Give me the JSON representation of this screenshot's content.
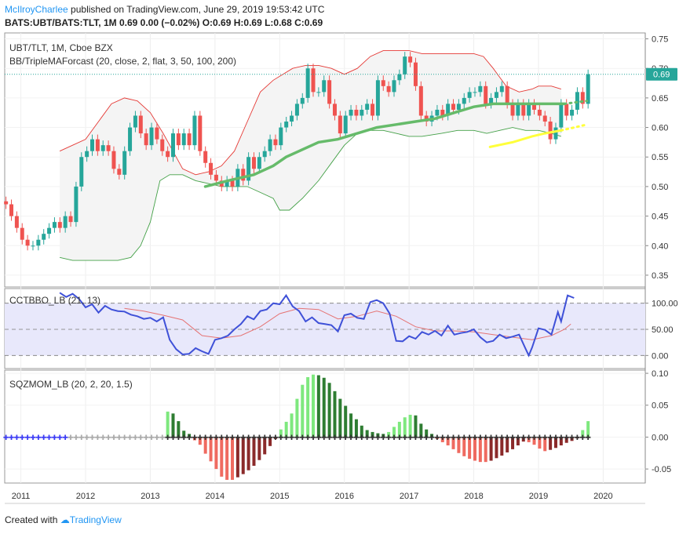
{
  "header": {
    "author": "McIlroyCharlee",
    "published_text": "published on TradingView.com, June 29, 2019 19:53:42 UTC",
    "quote_line": "BATS:UBT/BATS:TLT, 1M 0.69 0.00 (−0.02%) O:0.69 H:0.69 L:0.68 C:0.69"
  },
  "footer": {
    "created_with": "Created with",
    "brand": "TradingView"
  },
  "colors": {
    "up": "#26a69a",
    "down": "#ef5350",
    "bb_upper": "#e53935",
    "bb_lower": "#43a047",
    "ma_green": "#66bb6a",
    "ma_yellow": "#ffff3b",
    "cci": "#3f51d8",
    "cci_signal": "#e57373",
    "band_fill": "#e8e8fb",
    "sqz_up_strong": "#7ee87e",
    "sqz_up_weak": "#2e7d32",
    "sqz_down_strong": "#ef6a60",
    "sqz_down_weak": "#8b2a2a",
    "last_price": "#26a69a"
  },
  "chart_data": [
    {
      "type": "candlestick",
      "title": "UBT/TLT, 1M, Cboe BZX",
      "indicator_label": "BB/TripleMAForcast (20, close, 2, flat, 3, 50, 100, 200)",
      "last_price_label": "0.69",
      "ylim": [
        0.33,
        0.76
      ],
      "y_ticks": [
        "0.75",
        "0.70",
        "0.65",
        "0.60",
        "0.55",
        "0.50",
        "0.45",
        "0.40",
        "0.35"
      ],
      "x_ticks": [
        "2011",
        "2012",
        "2013",
        "2014",
        "2015",
        "2016",
        "2017",
        "2018",
        "2019",
        "2020"
      ],
      "x_start": 2010.75,
      "x_end": 2020.65,
      "closes": [
        0.47,
        0.45,
        0.43,
        0.41,
        0.4,
        0.4,
        0.41,
        0.42,
        0.43,
        0.44,
        0.43,
        0.45,
        0.44,
        0.5,
        0.55,
        0.56,
        0.58,
        0.56,
        0.57,
        0.56,
        0.53,
        0.52,
        0.56,
        0.6,
        0.62,
        0.59,
        0.57,
        0.6,
        0.58,
        0.56,
        0.55,
        0.59,
        0.57,
        0.59,
        0.57,
        0.62,
        0.56,
        0.54,
        0.52,
        0.51,
        0.5,
        0.51,
        0.5,
        0.53,
        0.51,
        0.55,
        0.53,
        0.55,
        0.56,
        0.58,
        0.57,
        0.6,
        0.61,
        0.62,
        0.64,
        0.65,
        0.7,
        0.66,
        0.66,
        0.68,
        0.64,
        0.62,
        0.59,
        0.62,
        0.63,
        0.62,
        0.63,
        0.64,
        0.62,
        0.68,
        0.67,
        0.66,
        0.68,
        0.69,
        0.72,
        0.71,
        0.67,
        0.62,
        0.61,
        0.62,
        0.63,
        0.62,
        0.64,
        0.63,
        0.64,
        0.65,
        0.66,
        0.66,
        0.67,
        0.64,
        0.65,
        0.66,
        0.67,
        0.64,
        0.62,
        0.64,
        0.62,
        0.64,
        0.63,
        0.62,
        0.61,
        0.58,
        0.6,
        0.64,
        0.62,
        0.63,
        0.66,
        0.64,
        0.69
      ],
      "bb_upper": [
        [
          2011.6,
          0.56
        ],
        [
          2011.8,
          0.57
        ],
        [
          2012.0,
          0.58
        ],
        [
          2012.2,
          0.61
        ],
        [
          2012.4,
          0.64
        ],
        [
          2012.6,
          0.65
        ],
        [
          2012.8,
          0.645
        ],
        [
          2013.0,
          0.625
        ],
        [
          2013.2,
          0.59
        ],
        [
          2013.35,
          0.56
        ],
        [
          2013.5,
          0.53
        ],
        [
          2013.7,
          0.52
        ],
        [
          2013.9,
          0.525
        ],
        [
          2014.1,
          0.535
        ],
        [
          2014.3,
          0.56
        ],
        [
          2014.5,
          0.61
        ],
        [
          2014.7,
          0.66
        ],
        [
          2014.9,
          0.68
        ],
        [
          2015.05,
          0.69
        ],
        [
          2015.2,
          0.7
        ],
        [
          2015.4,
          0.705
        ],
        [
          2015.6,
          0.705
        ],
        [
          2015.8,
          0.7
        ],
        [
          2016.0,
          0.69
        ],
        [
          2016.2,
          0.7
        ],
        [
          2016.4,
          0.72
        ],
        [
          2016.6,
          0.73
        ],
        [
          2016.8,
          0.73
        ],
        [
          2017.0,
          0.73
        ],
        [
          2017.2,
          0.725
        ],
        [
          2017.5,
          0.725
        ],
        [
          2017.8,
          0.725
        ],
        [
          2018.0,
          0.725
        ],
        [
          2018.15,
          0.72
        ],
        [
          2018.3,
          0.7
        ],
        [
          2018.5,
          0.67
        ],
        [
          2018.7,
          0.66
        ],
        [
          2018.9,
          0.665
        ],
        [
          2019.0,
          0.67
        ],
        [
          2019.2,
          0.67
        ],
        [
          2019.35,
          0.665
        ]
      ],
      "bb_lower": [
        [
          2011.6,
          0.38
        ],
        [
          2011.8,
          0.375
        ],
        [
          2012.0,
          0.375
        ],
        [
          2012.3,
          0.375
        ],
        [
          2012.5,
          0.375
        ],
        [
          2012.7,
          0.38
        ],
        [
          2012.85,
          0.4
        ],
        [
          2013.0,
          0.44
        ],
        [
          2013.15,
          0.51
        ],
        [
          2013.3,
          0.52
        ],
        [
          2013.5,
          0.52
        ],
        [
          2013.7,
          0.51
        ],
        [
          2013.9,
          0.505
        ],
        [
          2014.1,
          0.5
        ],
        [
          2014.3,
          0.5
        ],
        [
          2014.5,
          0.5
        ],
        [
          2014.7,
          0.49
        ],
        [
          2014.9,
          0.48
        ],
        [
          2015.0,
          0.46
        ],
        [
          2015.15,
          0.46
        ],
        [
          2015.35,
          0.48
        ],
        [
          2015.6,
          0.51
        ],
        [
          2015.8,
          0.54
        ],
        [
          2016.0,
          0.57
        ],
        [
          2016.2,
          0.59
        ],
        [
          2016.4,
          0.595
        ],
        [
          2016.6,
          0.595
        ],
        [
          2016.8,
          0.59
        ],
        [
          2017.0,
          0.585
        ],
        [
          2017.2,
          0.585
        ],
        [
          2017.5,
          0.59
        ],
        [
          2017.75,
          0.595
        ],
        [
          2018.0,
          0.595
        ],
        [
          2018.2,
          0.59
        ],
        [
          2018.4,
          0.595
        ],
        [
          2018.6,
          0.6
        ],
        [
          2018.8,
          0.595
        ],
        [
          2019.0,
          0.595
        ],
        [
          2019.2,
          0.59
        ],
        [
          2019.35,
          0.585
        ]
      ],
      "ma_green": [
        [
          2013.85,
          0.5
        ],
        [
          2014.2,
          0.51
        ],
        [
          2014.6,
          0.52
        ],
        [
          2014.9,
          0.535
        ],
        [
          2015.1,
          0.55
        ],
        [
          2015.3,
          0.56
        ],
        [
          2015.6,
          0.575
        ],
        [
          2015.9,
          0.58
        ],
        [
          2016.2,
          0.59
        ],
        [
          2016.5,
          0.6
        ],
        [
          2016.8,
          0.605
        ],
        [
          2017.1,
          0.61
        ],
        [
          2017.4,
          0.615
        ],
        [
          2017.7,
          0.625
        ],
        [
          2018.0,
          0.635
        ],
        [
          2018.3,
          0.64
        ],
        [
          2018.6,
          0.64
        ],
        [
          2018.9,
          0.64
        ],
        [
          2019.2,
          0.64
        ],
        [
          2019.4,
          0.64
        ]
      ],
      "ma_green_forecast": [
        [
          2019.4,
          0.64
        ],
        [
          2019.6,
          0.643
        ],
        [
          2019.75,
          0.645
        ]
      ],
      "ma_yellow": [
        [
          2018.25,
          0.567
        ],
        [
          2018.6,
          0.575
        ],
        [
          2018.9,
          0.585
        ],
        [
          2019.1,
          0.59
        ],
        [
          2019.35,
          0.595
        ]
      ],
      "ma_yellow_forecast": [
        [
          2019.35,
          0.595
        ],
        [
          2019.55,
          0.6
        ],
        [
          2019.75,
          0.605
        ]
      ]
    },
    {
      "type": "line",
      "title": "CCTBBO_LB (21, 13)",
      "ylim": [
        -25,
        128
      ],
      "y_ticks": [
        "100.00",
        "50.00",
        "0.00"
      ],
      "band": [
        0,
        100
      ],
      "cci": [
        [
          2011.6,
          120
        ],
        [
          2011.7,
          112
        ],
        [
          2011.8,
          118
        ],
        [
          2011.9,
          108
        ],
        [
          2012.0,
          92
        ],
        [
          2012.1,
          98
        ],
        [
          2012.2,
          82
        ],
        [
          2012.3,
          95
        ],
        [
          2012.4,
          88
        ],
        [
          2012.5,
          85
        ],
        [
          2012.6,
          84
        ],
        [
          2012.7,
          78
        ],
        [
          2012.8,
          75
        ],
        [
          2012.9,
          70
        ],
        [
          2013.0,
          72
        ],
        [
          2013.1,
          65
        ],
        [
          2013.2,
          73
        ],
        [
          2013.3,
          30
        ],
        [
          2013.4,
          12
        ],
        [
          2013.5,
          2
        ],
        [
          2013.6,
          3
        ],
        [
          2013.7,
          14
        ],
        [
          2013.8,
          8
        ],
        [
          2013.9,
          3
        ],
        [
          2014.0,
          30
        ],
        [
          2014.1,
          33
        ],
        [
          2014.2,
          38
        ],
        [
          2014.3,
          50
        ],
        [
          2014.4,
          60
        ],
        [
          2014.5,
          75
        ],
        [
          2014.6,
          69
        ],
        [
          2014.7,
          85
        ],
        [
          2014.8,
          88
        ],
        [
          2014.9,
          100
        ],
        [
          2015.0,
          98
        ],
        [
          2015.1,
          115
        ],
        [
          2015.2,
          94
        ],
        [
          2015.3,
          85
        ],
        [
          2015.4,
          65
        ],
        [
          2015.5,
          73
        ],
        [
          2015.6,
          62
        ],
        [
          2015.7,
          60
        ],
        [
          2015.8,
          58
        ],
        [
          2015.9,
          46
        ],
        [
          2016.0,
          77
        ],
        [
          2016.1,
          80
        ],
        [
          2016.2,
          72
        ],
        [
          2016.3,
          70
        ],
        [
          2016.4,
          102
        ],
        [
          2016.5,
          106
        ],
        [
          2016.6,
          100
        ],
        [
          2016.7,
          80
        ],
        [
          2016.8,
          28
        ],
        [
          2016.9,
          27
        ],
        [
          2017.0,
          37
        ],
        [
          2017.1,
          32
        ],
        [
          2017.2,
          45
        ],
        [
          2017.3,
          40
        ],
        [
          2017.4,
          47
        ],
        [
          2017.5,
          38
        ],
        [
          2017.6,
          57
        ],
        [
          2017.7,
          40
        ],
        [
          2017.8,
          43
        ],
        [
          2017.9,
          45
        ],
        [
          2018.0,
          50
        ],
        [
          2018.1,
          35
        ],
        [
          2018.2,
          25
        ],
        [
          2018.3,
          28
        ],
        [
          2018.4,
          40
        ],
        [
          2018.5,
          33
        ],
        [
          2018.6,
          36
        ],
        [
          2018.7,
          40
        ],
        [
          2018.8,
          13
        ],
        [
          2018.85,
          0
        ],
        [
          2018.9,
          15
        ],
        [
          2019.0,
          52
        ],
        [
          2019.1,
          49
        ],
        [
          2019.2,
          40
        ],
        [
          2019.3,
          83
        ],
        [
          2019.35,
          65
        ],
        [
          2019.45,
          115
        ],
        [
          2019.55,
          110
        ]
      ],
      "signal": [
        [
          2012.6,
          90
        ],
        [
          2012.9,
          85
        ],
        [
          2013.2,
          77
        ],
        [
          2013.5,
          68
        ],
        [
          2013.8,
          38
        ],
        [
          2014.1,
          33
        ],
        [
          2014.4,
          38
        ],
        [
          2014.7,
          55
        ],
        [
          2015.0,
          80
        ],
        [
          2015.3,
          90
        ],
        [
          2015.6,
          88
        ],
        [
          2015.9,
          70
        ],
        [
          2016.2,
          75
        ],
        [
          2016.5,
          85
        ],
        [
          2016.8,
          75
        ],
        [
          2017.1,
          55
        ],
        [
          2017.4,
          47
        ],
        [
          2017.7,
          47
        ],
        [
          2018.0,
          45
        ],
        [
          2018.3,
          40
        ],
        [
          2018.6,
          35
        ],
        [
          2018.9,
          30
        ],
        [
          2019.2,
          38
        ],
        [
          2019.4,
          50
        ],
        [
          2019.5,
          60
        ]
      ]
    },
    {
      "type": "bar",
      "title": "SQZMOM_LB (20, 2, 20, 1.5)",
      "ylim": [
        -0.072,
        0.105
      ],
      "y_ticks": [
        "0.10",
        "0.05",
        "0.00",
        "-0.05"
      ],
      "x_start": 2010.75,
      "x_step": 0.0833,
      "values": [
        0,
        0,
        0,
        0,
        0,
        0,
        0,
        0,
        0,
        0,
        0,
        0,
        0,
        0,
        0,
        0,
        0,
        0,
        0,
        0,
        0,
        0,
        0,
        0,
        0,
        0,
        0,
        0,
        0,
        0,
        0.04,
        0.037,
        0.025,
        0.01,
        0.005,
        -0.005,
        -0.012,
        -0.026,
        -0.038,
        -0.05,
        -0.062,
        -0.067,
        -0.067,
        -0.063,
        -0.058,
        -0.052,
        -0.045,
        -0.036,
        -0.027,
        -0.014,
        -0.003,
        0.012,
        0.024,
        0.037,
        0.06,
        0.082,
        0.094,
        0.098,
        0.097,
        0.093,
        0.085,
        0.072,
        0.06,
        0.049,
        0.037,
        0.028,
        0.018,
        0.011,
        0.008,
        0.006,
        0.005,
        0.008,
        0.016,
        0.024,
        0.031,
        0.035,
        0.034,
        0.021,
        0.012,
        0.005,
        -0.003,
        -0.008,
        -0.013,
        -0.019,
        -0.025,
        -0.03,
        -0.034,
        -0.037,
        -0.039,
        -0.039,
        -0.037,
        -0.033,
        -0.029,
        -0.024,
        -0.019,
        -0.013,
        -0.007,
        -0.008,
        -0.012,
        -0.018,
        -0.022,
        -0.02,
        -0.017,
        -0.013,
        -0.009,
        -0.006,
        -0.002,
        0.011,
        0.025
      ]
    }
  ]
}
